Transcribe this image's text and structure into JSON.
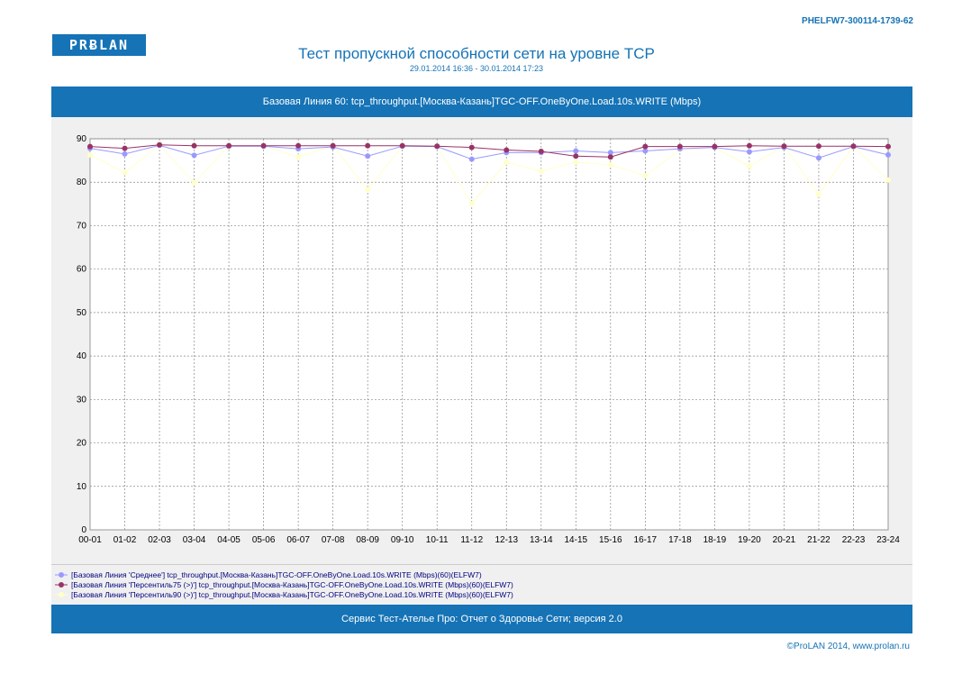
{
  "header": {
    "report_id": "PHELFW7-300114-1739-62",
    "logo_text": "PRɃLAN",
    "title": "Тест пропускной способности сети на уровне TCP",
    "subtitle": "29.01.2014 16:36 - 30.01.2014 17:23"
  },
  "band_top": "Базовая Линия 60: tcp_throughput.[Москва-Казань]TGC-OFF.OneByOne.Load.10s.WRITE (Mbps)",
  "band_bottom": "Сервис Тест-Ателье Про: Отчет о Здоровье Сети; версия 2.0",
  "copyright": "©ProLAN 2014, www.prolan.ru",
  "colors": {
    "brand": "#1573b6",
    "series_avg": "#9999ff",
    "series_p75": "#993366",
    "series_p90": "#ffffcc"
  },
  "chart_data": {
    "type": "line",
    "title": "Базовая Линия 60: tcp_throughput.[Москва-Казань]TGC-OFF.OneByOne.Load.10s.WRITE (Mbps)",
    "xlabel": "",
    "ylabel": "",
    "ylim": [
      0,
      90
    ],
    "yticks": [
      0,
      10,
      20,
      30,
      40,
      50,
      60,
      70,
      80,
      90
    ],
    "grid": true,
    "legend_position": "bottom",
    "categories": [
      "00-01",
      "01-02",
      "02-03",
      "03-04",
      "04-05",
      "05-06",
      "06-07",
      "07-08",
      "08-09",
      "09-10",
      "10-11",
      "11-12",
      "12-13",
      "13-14",
      "14-15",
      "15-16",
      "16-17",
      "17-18",
      "18-19",
      "19-20",
      "20-21",
      "21-22",
      "22-23",
      "23-24"
    ],
    "series": [
      {
        "name": "[Базовая Линия 'Среднее'] tcp_throughput.[Москва-Казань]TGC-OFF.OneByOne.Load.10s.WRITE (Mbps)(60)(ELFW7)",
        "color": "#9999ff",
        "values": [
          87.8,
          86.5,
          88.5,
          86.2,
          88.3,
          88.3,
          87.7,
          88.1,
          86.0,
          88.3,
          88.2,
          85.3,
          86.8,
          86.8,
          87.2,
          86.8,
          87.2,
          87.7,
          88.0,
          87.0,
          88.0,
          85.6,
          88.2,
          86.3
        ]
      },
      {
        "name": "[Базовая Линия 'Персентиль75 (>)'] tcp_throughput.[Москва-Казань]TGC-OFF.OneByOne.Load.10s.WRITE (Mbps)(60)(ELFW7)",
        "color": "#993366",
        "values": [
          88.2,
          87.8,
          88.6,
          88.4,
          88.4,
          88.4,
          88.4,
          88.4,
          88.4,
          88.4,
          88.3,
          88.0,
          87.4,
          87.1,
          86.0,
          85.8,
          88.2,
          88.2,
          88.2,
          88.4,
          88.3,
          88.3,
          88.3,
          88.2
        ]
      },
      {
        "name": "[Базовая Линия 'Персентиль90 (>)'] tcp_throughput.[Москва-Казань]TGC-OFF.OneByOne.Load.10s.WRITE (Mbps)(60)(ELFW7)",
        "color": "#ffffcc",
        "values": [
          86.3,
          82.2,
          88.6,
          79.8,
          88.4,
          88.4,
          85.8,
          88.4,
          78.3,
          88.4,
          88.3,
          75.1,
          84.6,
          82.5,
          84.6,
          84.0,
          81.5,
          87.5,
          88.0,
          83.7,
          88.3,
          77.2,
          88.3,
          80.5
        ]
      }
    ]
  }
}
